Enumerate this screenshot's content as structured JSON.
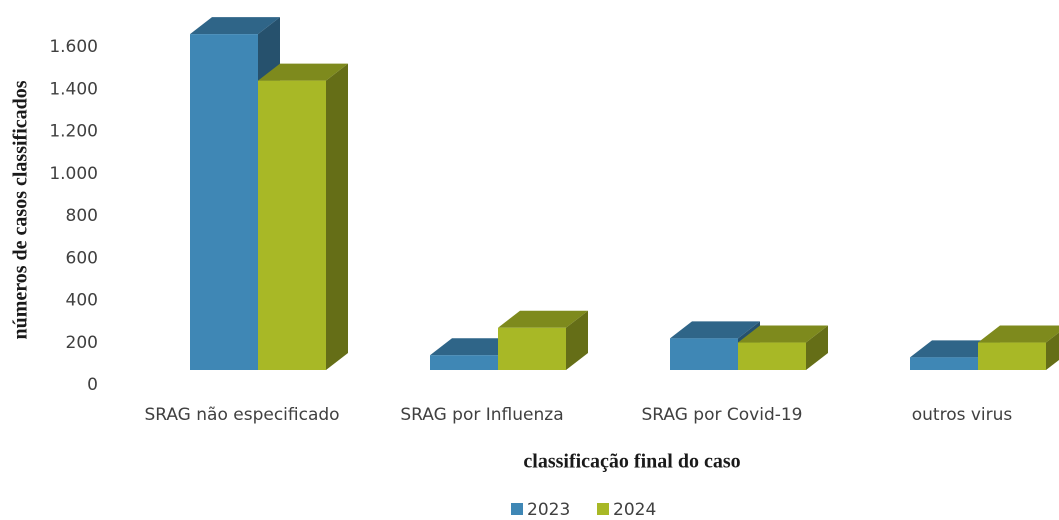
{
  "chart_data": {
    "type": "bar3d",
    "x_label": "classificação final do caso",
    "y_label": "números de casos classificados",
    "categories": [
      "SRAG não especificado",
      "SRAG por Influenza",
      "SRAG por Covid-19",
      "outros virus"
    ],
    "series": [
      {
        "name": "2023",
        "color": "#3f87b5",
        "values": [
          1590,
          70,
          150,
          60
        ]
      },
      {
        "name": "2024",
        "color": "#a8b826",
        "values": [
          1370,
          200,
          130,
          130
        ]
      }
    ],
    "ylim": [
      0,
      1600
    ],
    "yticks": [
      0,
      200,
      400,
      600,
      800,
      {
        "value": 1000,
        "label": "1.000"
      },
      {
        "value": 1200,
        "label": "1.200"
      },
      {
        "value": 1400,
        "label": "1.400"
      },
      {
        "value": 1600,
        "label": "1.600"
      }
    ],
    "legend": "bottom"
  }
}
